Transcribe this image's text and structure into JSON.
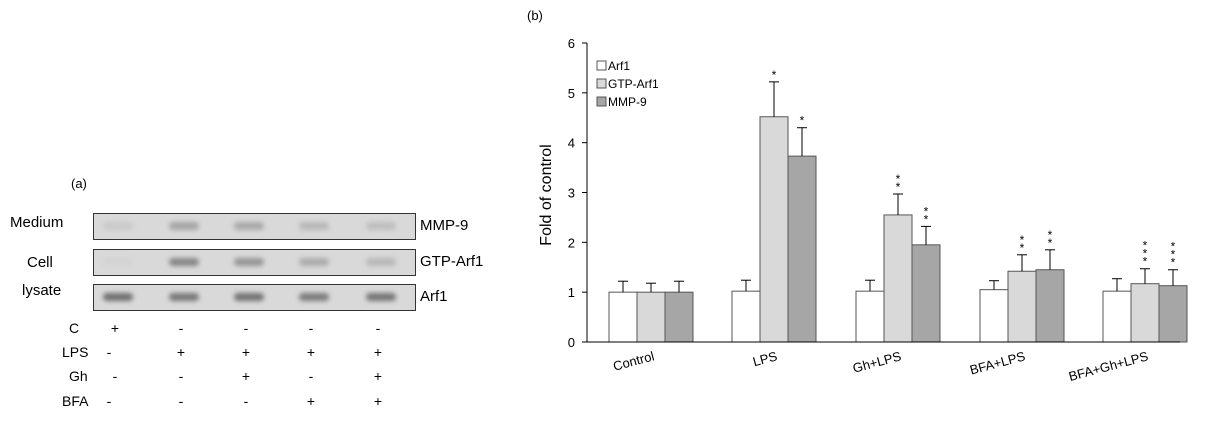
{
  "panel_a": {
    "label": "(a)",
    "row_labels": {
      "medium": "Medium",
      "cell": "Cell",
      "lysate": "lysate"
    },
    "blots": [
      {
        "label": "MMP-9",
        "intensity": [
          0.1,
          0.35,
          0.32,
          0.22,
          0.18
        ]
      },
      {
        "label": "GTP-Arf1",
        "intensity": [
          0.04,
          0.55,
          0.45,
          0.3,
          0.22
        ]
      },
      {
        "label": "Arf1",
        "intensity": [
          0.7,
          0.65,
          0.68,
          0.62,
          0.66
        ]
      }
    ],
    "conditions": [
      {
        "label": "C",
        "signs": [
          "+",
          "-",
          "-",
          "-",
          "-"
        ]
      },
      {
        "label": "LPS",
        "signs": [
          "-",
          "+",
          "+",
          "+",
          "+"
        ]
      },
      {
        "label": "Gh",
        "signs": [
          "-",
          "-",
          "+",
          "-",
          "+"
        ]
      },
      {
        "label": "BFA",
        "signs": [
          "-",
          "-",
          "-",
          "+",
          "+"
        ]
      }
    ]
  },
  "chart_data": {
    "type": "bar",
    "panel_label": "(b)",
    "ylabel": "Fold of control",
    "xlabel": "",
    "ylim": [
      0,
      6
    ],
    "yticks": [
      "0",
      "1",
      "2",
      "3",
      "4",
      "5",
      "6"
    ],
    "categories": [
      "Control",
      "LPS",
      "Gh+LPS",
      "BFA+LPS",
      "BFA+Gh+LPS"
    ],
    "legend_position": "top-left",
    "series": [
      {
        "name": "Arf1",
        "color": "#ffffff",
        "values": [
          1.0,
          1.02,
          1.02,
          1.05,
          1.02
        ],
        "errors": [
          0.22,
          0.22,
          0.22,
          0.18,
          0.25
        ],
        "sig": [
          "",
          "",
          "",
          "",
          ""
        ]
      },
      {
        "name": "GTP-Arf1",
        "color": "#d9d9d9",
        "values": [
          1.0,
          4.52,
          2.55,
          1.42,
          1.17
        ],
        "errors": [
          0.18,
          0.7,
          0.42,
          0.33,
          0.3
        ],
        "sig": [
          "",
          "*",
          "**",
          "**",
          "***"
        ]
      },
      {
        "name": "MMP-9",
        "color": "#a6a6a6",
        "values": [
          1.0,
          3.73,
          1.95,
          1.45,
          1.13
        ],
        "errors": [
          0.22,
          0.57,
          0.37,
          0.4,
          0.32
        ],
        "sig": [
          "",
          "*",
          "**",
          "**",
          "***"
        ]
      }
    ]
  }
}
